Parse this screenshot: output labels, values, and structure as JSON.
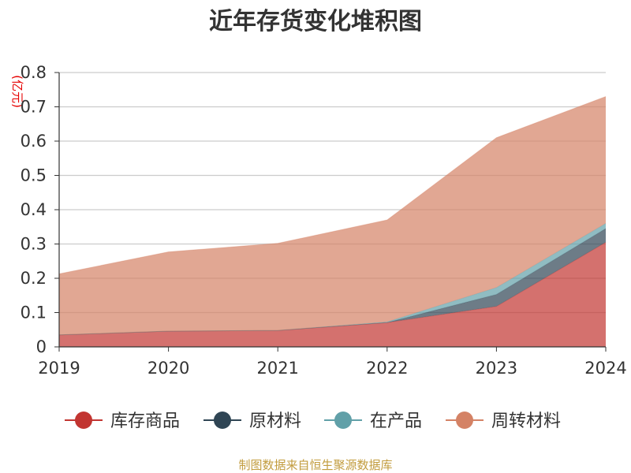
{
  "chart_data": {
    "type": "area",
    "stacked": true,
    "title": "近年存货变化堆积图",
    "ylabel": "(亿元)",
    "xlabel": "",
    "categories": [
      "2019",
      "2020",
      "2021",
      "2022",
      "2023",
      "2024"
    ],
    "ylim": [
      0,
      0.8
    ],
    "yticks": [
      "0",
      "0.1",
      "0.2",
      "0.3",
      "0.4",
      "0.5",
      "0.6",
      "0.7",
      "0.8"
    ],
    "grid": true,
    "legend_position": "bottom",
    "series": [
      {
        "name": "库存商品",
        "color": "#c23531",
        "values": [
          0.035,
          0.046,
          0.048,
          0.071,
          0.118,
          0.305
        ]
      },
      {
        "name": "原材料",
        "color": "#2f4554",
        "values": [
          0.0,
          0.0,
          0.0,
          0.0,
          0.035,
          0.04
        ]
      },
      {
        "name": "在产品",
        "color": "#61a0a8",
        "values": [
          0.0,
          0.0,
          0.0,
          0.002,
          0.02,
          0.015
        ]
      },
      {
        "name": "周转材料",
        "color": "#d48265",
        "values": [
          0.178,
          0.231,
          0.254,
          0.297,
          0.437,
          0.37
        ]
      }
    ]
  },
  "footer": {
    "source": "制图数据来自恒生聚源数据库"
  }
}
